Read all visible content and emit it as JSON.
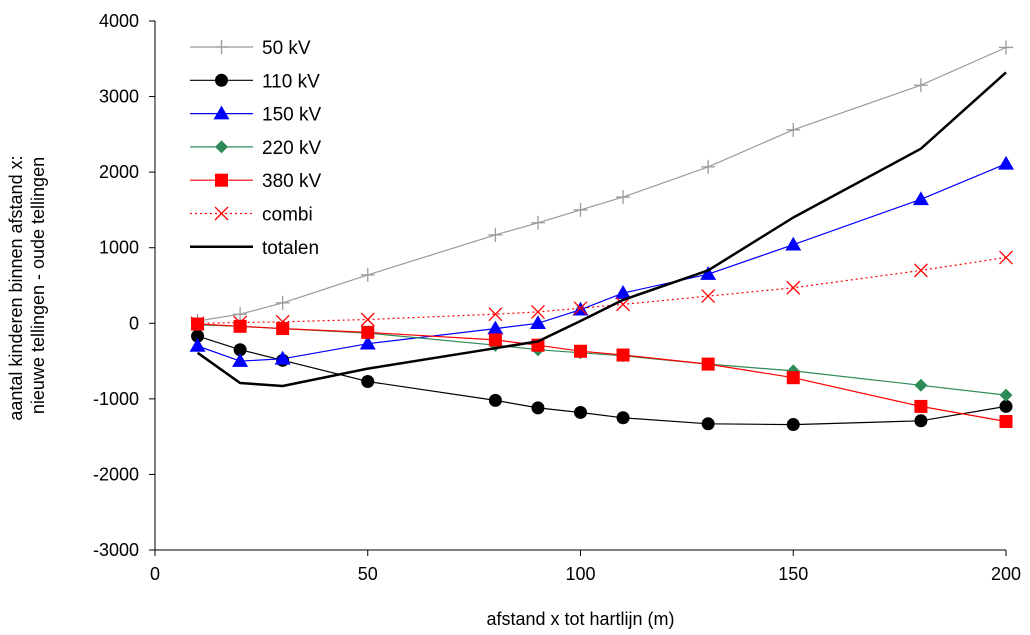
{
  "chart_data": {
    "type": "line",
    "title": "",
    "xlabel": "afstand x tot hartlijn (m)",
    "ylabel_lines": [
      "aantal kinderen binnen afstand x:",
      "nieuwe tellingen - oude tellingen"
    ],
    "xlim": [
      0,
      200
    ],
    "ylim": [
      -3000,
      4000
    ],
    "xticks": [
      0,
      50,
      100,
      150,
      200
    ],
    "yticks": [
      -3000,
      -2000,
      -1000,
      0,
      1000,
      2000,
      3000,
      4000
    ],
    "grid": false,
    "legend_position": "top-left",
    "series": [
      {
        "name": "50 kV",
        "color": "#9a9a9a",
        "marker": "plus",
        "dash": "solid",
        "x": [
          10,
          20,
          30,
          50,
          80,
          90,
          100,
          110,
          130,
          150,
          180,
          200
        ],
        "y": [
          30,
          120,
          270,
          640,
          1170,
          1330,
          1500,
          1670,
          2070,
          2560,
          3150,
          3650
        ]
      },
      {
        "name": "110 kV",
        "color": "#000000",
        "marker": "circle",
        "dash": "solid",
        "x": [
          10,
          20,
          30,
          50,
          80,
          90,
          100,
          110,
          130,
          150,
          180,
          200
        ],
        "y": [
          -170,
          -350,
          -490,
          -770,
          -1020,
          -1120,
          -1180,
          -1250,
          -1330,
          -1340,
          -1290,
          -1100
        ]
      },
      {
        "name": "150 kV",
        "color": "#0000ff",
        "marker": "triangle",
        "dash": "solid",
        "x": [
          10,
          20,
          30,
          50,
          80,
          90,
          100,
          110,
          130,
          150,
          180,
          200
        ],
        "y": [
          -300,
          -500,
          -470,
          -270,
          -70,
          0,
          180,
          400,
          650,
          1040,
          1640,
          2110
        ]
      },
      {
        "name": "220 kV",
        "color": "#2e8b57",
        "marker": "diamond",
        "dash": "solid",
        "x": [
          10,
          20,
          30,
          50,
          80,
          90,
          100,
          110,
          130,
          150,
          180,
          200
        ],
        "y": [
          -20,
          -40,
          -70,
          -130,
          -290,
          -350,
          -390,
          -430,
          -540,
          -630,
          -820,
          -950
        ]
      },
      {
        "name": "380 kV",
        "color": "#ff0000",
        "marker": "square",
        "dash": "solid",
        "x": [
          10,
          20,
          30,
          50,
          80,
          90,
          100,
          110,
          130,
          150,
          180,
          200
        ],
        "y": [
          -10,
          -40,
          -70,
          -120,
          -220,
          -290,
          -370,
          -420,
          -540,
          -720,
          -1100,
          -1300
        ]
      },
      {
        "name": "combi",
        "color": "#ff0000",
        "marker": "x",
        "dash": "dotted",
        "x": [
          10,
          20,
          30,
          50,
          80,
          90,
          100,
          110,
          130,
          150,
          180,
          200
        ],
        "y": [
          0,
          10,
          20,
          50,
          120,
          150,
          200,
          250,
          360,
          470,
          700,
          870
        ]
      },
      {
        "name": "totalen",
        "color": "#000000",
        "marker": "none",
        "dash": "solid",
        "x": [
          10,
          20,
          30,
          50,
          80,
          90,
          100,
          110,
          130,
          150,
          180,
          200
        ],
        "y": [
          -390,
          -790,
          -830,
          -600,
          -330,
          -240,
          30,
          310,
          700,
          1400,
          2310,
          3320
        ]
      }
    ]
  }
}
